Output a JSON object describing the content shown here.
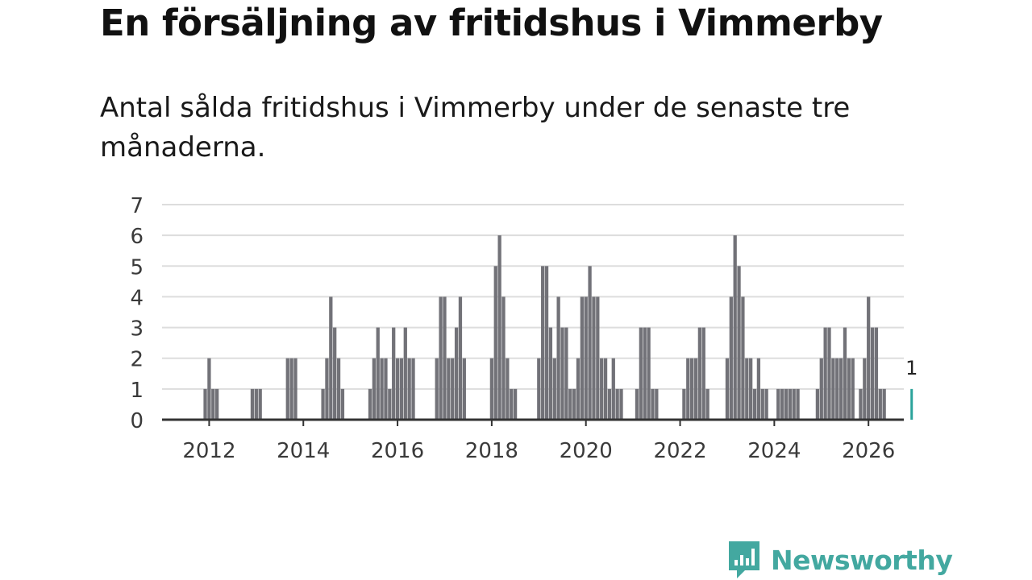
{
  "title": "En försäljning av fritidshus i Vimmerby",
  "subtitle": "Antal sålda fritidshus i Vimmerby under de senaste tre månaderna.",
  "brand": {
    "name": "Newsworthy",
    "color": "#43a8a0"
  },
  "colors": {
    "bar": "#727278",
    "highlight": "#2ba39b",
    "grid": "#dddddd",
    "axis": "#333333"
  },
  "chart_data": {
    "type": "bar",
    "title": "En försäljning av fritidshus i Vimmerby",
    "xlabel": "",
    "ylabel": "",
    "ylim": [
      0,
      7
    ],
    "xlim": [
      2011.0,
      2026.75
    ],
    "yticks": [
      0,
      1,
      2,
      3,
      4,
      5,
      6,
      7
    ],
    "xticks": [
      2012,
      2014,
      2016,
      2018,
      2020,
      2022,
      2024,
      2026
    ],
    "start_period": "2011-12",
    "values": [
      1,
      2,
      1,
      1,
      0,
      0,
      0,
      0,
      0,
      0,
      0,
      0,
      1,
      1,
      1,
      0,
      0,
      0,
      0,
      0,
      0,
      2,
      2,
      2,
      0,
      0,
      0,
      0,
      0,
      0,
      1,
      2,
      4,
      3,
      2,
      1,
      0,
      0,
      0,
      0,
      0,
      0,
      1,
      2,
      3,
      2,
      2,
      1,
      3,
      2,
      2,
      3,
      2,
      2,
      0,
      0,
      0,
      0,
      0,
      2,
      4,
      4,
      2,
      2,
      3,
      4,
      2,
      0,
      0,
      0,
      0,
      0,
      0,
      2,
      5,
      6,
      4,
      2,
      1,
      1,
      0,
      0,
      0,
      0,
      0,
      2,
      5,
      5,
      3,
      2,
      4,
      3,
      3,
      1,
      1,
      2,
      4,
      4,
      5,
      4,
      4,
      2,
      2,
      1,
      2,
      1,
      1,
      0,
      0,
      0,
      1,
      3,
      3,
      3,
      1,
      1,
      0,
      0,
      0,
      0,
      0,
      0,
      1,
      2,
      2,
      2,
      3,
      3,
      1,
      0,
      0,
      0,
      0,
      2,
      4,
      6,
      5,
      4,
      2,
      2,
      1,
      2,
      1,
      1,
      0,
      0,
      1,
      1,
      1,
      1,
      1,
      1,
      0,
      0,
      0,
      0,
      1,
      2,
      3,
      3,
      2,
      2,
      2,
      3,
      2,
      2,
      0,
      1,
      2,
      4,
      3,
      3,
      1,
      1,
      0,
      0,
      0,
      0,
      0,
      0,
      1
    ],
    "highlight": {
      "label": "1",
      "value": 1
    }
  }
}
